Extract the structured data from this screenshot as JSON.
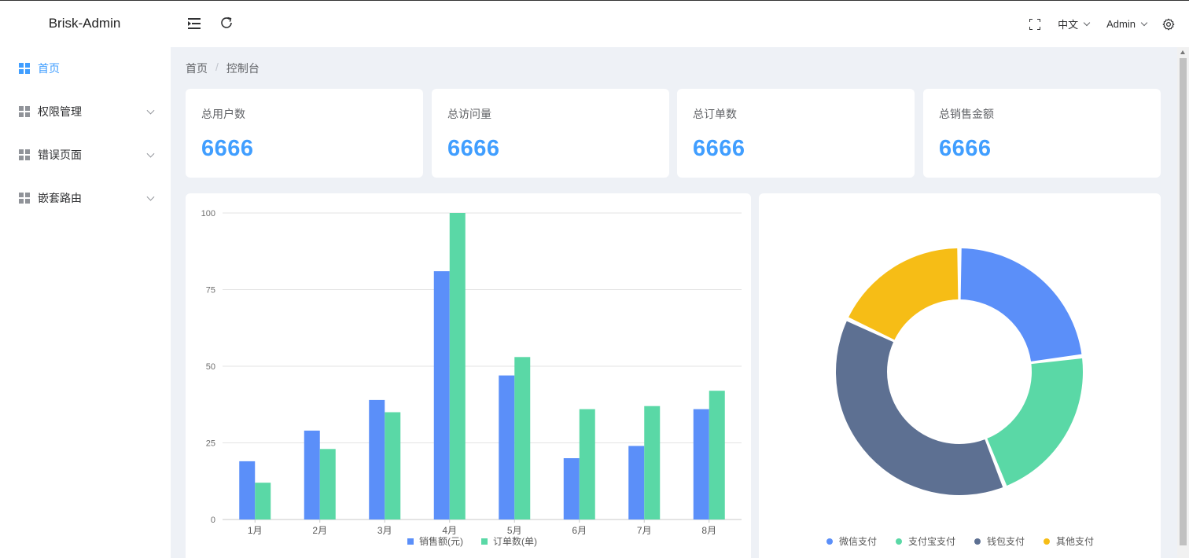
{
  "app": {
    "brand": "Brisk-Admin"
  },
  "sidebar": {
    "items": [
      {
        "label": "首页",
        "icon": "grid-icon",
        "active": true
      },
      {
        "label": "权限管理",
        "icon": "grid-icon",
        "expandable": true
      },
      {
        "label": "错误页面",
        "icon": "grid-icon",
        "expandable": true
      },
      {
        "label": "嵌套路由",
        "icon": "grid-icon",
        "expandable": true
      }
    ]
  },
  "header": {
    "language": "中文",
    "user": "Admin",
    "icons": [
      "menu-fold-icon",
      "refresh-icon",
      "fullscreen-icon",
      "chevron-down-icon",
      "gear-icon"
    ]
  },
  "breadcrumb": {
    "home": "首页",
    "current": "控制台"
  },
  "stats": [
    {
      "title": "总用户数",
      "value": "6666"
    },
    {
      "title": "总访问量",
      "value": "6666"
    },
    {
      "title": "总订单数",
      "value": "6666"
    },
    {
      "title": "总销售金额",
      "value": "6666"
    }
  ],
  "colors": {
    "accent": "#409eff",
    "bar_sales": "#5b8ff9",
    "bar_orders": "#5ad8a6",
    "pie_wechat": "#5b8ff9",
    "pie_alipay": "#5ad8a6",
    "pie_wallet": "#5d7092",
    "pie_other": "#f6bd16"
  },
  "chart_data": [
    {
      "type": "bar",
      "categories": [
        "1月",
        "2月",
        "3月",
        "4月",
        "5月",
        "6月",
        "7月",
        "8月"
      ],
      "series": [
        {
          "name": "销售额(元)",
          "values": [
            19,
            29,
            39,
            81,
            47,
            20,
            24,
            36
          ]
        },
        {
          "name": "订单数(单)",
          "values": [
            12,
            23,
            35,
            100,
            53,
            36,
            37,
            42
          ]
        }
      ],
      "yticks": [
        "0",
        "25",
        "50",
        "75",
        "100"
      ],
      "ylim": [
        0,
        100
      ],
      "grid": true,
      "legend": "bottom"
    },
    {
      "type": "pie",
      "donut": true,
      "slices": [
        {
          "name": "微信支付",
          "value": 23
        },
        {
          "name": "支付宝支付",
          "value": 21
        },
        {
          "name": "钱包支付",
          "value": 38
        },
        {
          "name": "其他支付",
          "value": 18
        }
      ],
      "legend": "bottom"
    }
  ]
}
